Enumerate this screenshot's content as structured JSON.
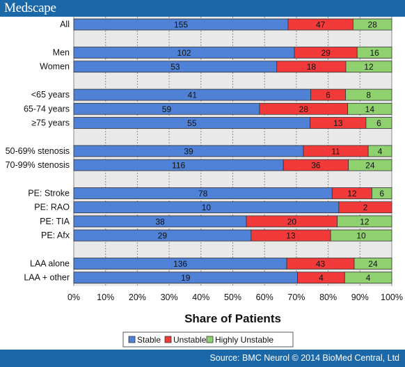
{
  "header": {
    "brand": "Medscape"
  },
  "footer": {
    "source": "Source: BMC Neurol © 2014 BioMed Central, Ltd"
  },
  "chart_data": {
    "type": "bar",
    "orientation": "horizontal",
    "stacked": "percent",
    "xlabel": "Share of Patients",
    "ticks": [
      "0%",
      "10%",
      "20%",
      "30%",
      "40%",
      "50%",
      "60%",
      "70%",
      "80%",
      "90%",
      "100%"
    ],
    "xlim": [
      0,
      100
    ],
    "grid": true,
    "legend": {
      "position": "bottom",
      "entries": [
        "Stable",
        "Unstable",
        "Highly Unstable"
      ]
    },
    "series": [
      {
        "name": "Stable",
        "color": "#4f82d6"
      },
      {
        "name": "Unstable",
        "color": "#f23a3a"
      },
      {
        "name": "Highly Unstable",
        "color": "#8fd16e"
      }
    ],
    "categories": [
      {
        "label": "All",
        "values": [
          155,
          47,
          28
        ]
      },
      {
        "label": "",
        "values": []
      },
      {
        "label": "Men",
        "values": [
          102,
          29,
          16
        ]
      },
      {
        "label": "Women",
        "values": [
          53,
          18,
          12
        ]
      },
      {
        "label": "",
        "values": []
      },
      {
        "label": "<65 years",
        "values": [
          41,
          6,
          8
        ]
      },
      {
        "label": "65-74 years",
        "values": [
          59,
          28,
          14
        ]
      },
      {
        "label": "≥75 years",
        "values": [
          55,
          13,
          6
        ]
      },
      {
        "label": "",
        "values": []
      },
      {
        "label": "50-69% stenosis",
        "values": [
          39,
          11,
          4
        ]
      },
      {
        "label": "70-99% stenosis",
        "values": [
          116,
          36,
          24
        ]
      },
      {
        "label": "",
        "values": []
      },
      {
        "label": "PE: Stroke",
        "values": [
          78,
          12,
          6
        ]
      },
      {
        "label": "PE: RAO",
        "values": [
          10,
          2
        ]
      },
      {
        "label": "PE: TIA",
        "values": [
          38,
          20,
          12
        ]
      },
      {
        "label": "PE: Afx",
        "values": [
          29,
          13,
          10
        ]
      },
      {
        "label": "",
        "values": []
      },
      {
        "label": "LAA alone",
        "values": [
          136,
          43,
          24
        ]
      },
      {
        "label": "LAA + other",
        "values": [
          19,
          4,
          4
        ]
      }
    ]
  }
}
